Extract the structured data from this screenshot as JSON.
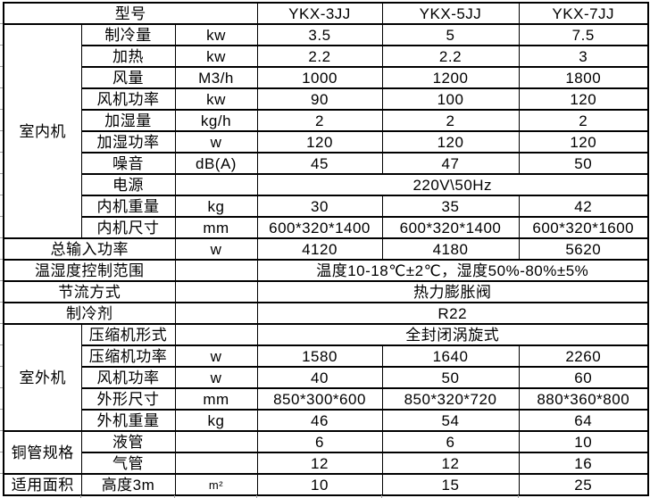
{
  "page": {
    "background_color": "#ffffff",
    "border_color": "#000000",
    "text_color": "#000000",
    "gridline_stub_color": "#a0a0a0"
  },
  "table": {
    "header": {
      "label": "型号",
      "models": [
        "YKX-3JJ",
        "YKX-5JJ",
        "YKX-7JJ"
      ]
    },
    "sections": [
      {
        "group": "室内机",
        "rows": [
          {
            "label": "制冷量",
            "unit": "kw",
            "values": [
              "3.5",
              "5",
              "7.5"
            ]
          },
          {
            "label": "加热",
            "unit": "kw",
            "values": [
              "2.2",
              "2.2",
              "3"
            ]
          },
          {
            "label": "风量",
            "unit": "M3/h",
            "values": [
              "1000",
              "1200",
              "1800"
            ]
          },
          {
            "label": "风机功率",
            "unit": "kw",
            "values": [
              "90",
              "100",
              "120"
            ]
          },
          {
            "label": "加湿量",
            "unit": "kg/h",
            "values": [
              "2",
              "2",
              "2"
            ]
          },
          {
            "label": "加湿功率",
            "unit": "w",
            "values": [
              "120",
              "120",
              "120"
            ]
          },
          {
            "label": "噪音",
            "unit": "dB(A)",
            "values": [
              "45",
              "47",
              "50"
            ]
          },
          {
            "label": "电源",
            "unit": "",
            "span": "220V\\50Hz"
          },
          {
            "label": "内机重量",
            "unit": "kg",
            "values": [
              "30",
              "35",
              "42"
            ]
          },
          {
            "label": "内机尺寸",
            "unit": "mm",
            "values": [
              "600*320*1400",
              "600*320*1400",
              "600*320*1600"
            ]
          }
        ]
      },
      {
        "group": "",
        "rows": [
          {
            "label": "总输入功率",
            "unit": "w",
            "values": [
              "4120",
              "4180",
              "5620"
            ]
          },
          {
            "label": "温湿度控制范围",
            "unit": "",
            "span": "温度10-18℃±2℃，湿度50%-80%±5%"
          },
          {
            "label": "节流方式",
            "unit": "",
            "span": "热力膨胀阀"
          },
          {
            "label": "制冷剂",
            "unit": "",
            "span": "R22"
          }
        ]
      },
      {
        "group": "室外机",
        "rows": [
          {
            "label": "压缩机形式",
            "unit": "",
            "span": "全封闭涡旋式"
          },
          {
            "label": "压缩机功率",
            "unit": "w",
            "values": [
              "1580",
              "1640",
              "2260"
            ]
          },
          {
            "label": "风机功率",
            "unit": "w",
            "values": [
              "40",
              "50",
              "60"
            ]
          },
          {
            "label": "外形尺寸",
            "unit": "mm",
            "values": [
              "850*300*600",
              "850*320*720",
              "880*360*800"
            ]
          },
          {
            "label": "外机重量",
            "unit": "kg",
            "values": [
              "46",
              "54",
              "64"
            ]
          }
        ]
      },
      {
        "group": "铜管规格",
        "rows": [
          {
            "label": "液管",
            "unit": "",
            "values": [
              "6",
              "6",
              "10"
            ]
          },
          {
            "label": "气管",
            "unit": "",
            "values": [
              "12",
              "12",
              "16"
            ]
          }
        ]
      },
      {
        "group": "适用面积",
        "rows": [
          {
            "label": "高度3m",
            "unit": "m²",
            "values": [
              "10",
              "15",
              "25"
            ]
          }
        ]
      }
    ]
  }
}
